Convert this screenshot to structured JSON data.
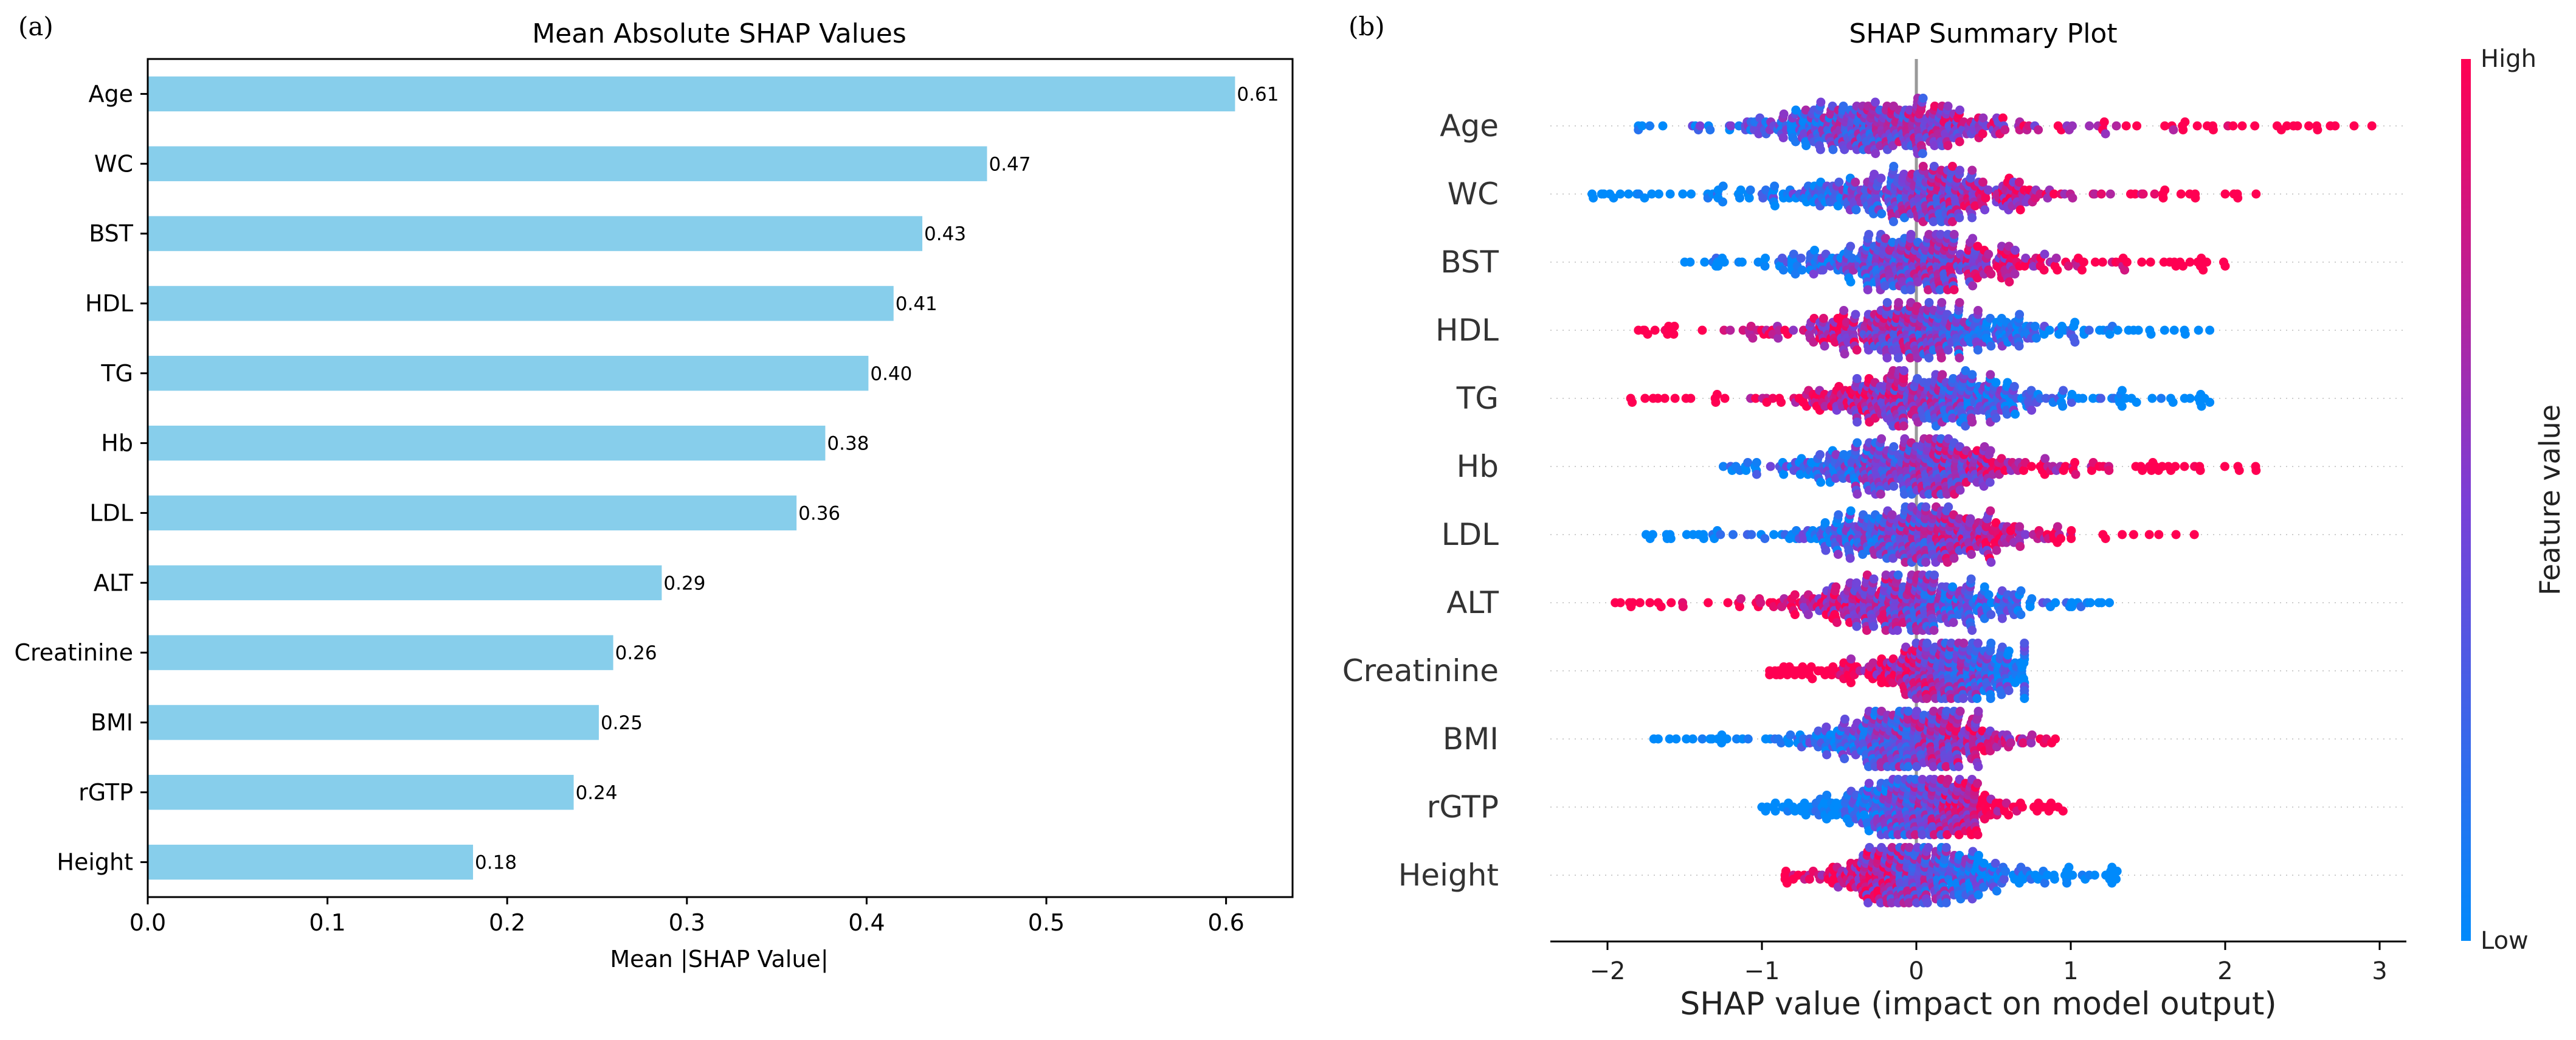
{
  "chart_data": [
    {
      "type": "bar",
      "orientation": "horizontal",
      "panel_label": "(a)",
      "title": "Mean Absolute SHAP Values",
      "xlabel": "Mean |SHAP Value|",
      "ylabel": "",
      "xlim": [
        0,
        0.637
      ],
      "xticks": [
        0.0,
        0.1,
        0.2,
        0.3,
        0.4,
        0.5,
        0.6
      ],
      "xtick_labels": [
        "0.0",
        "0.1",
        "0.2",
        "0.3",
        "0.4",
        "0.5",
        "0.6"
      ],
      "grid": false,
      "bar_color": "#87ceeb",
      "categories": [
        "Age",
        "WC",
        "BST",
        "HDL",
        "TG",
        "Hb",
        "LDL",
        "ALT",
        "Creatinine",
        "BMI",
        "rGTP",
        "Height"
      ],
      "values": [
        0.605,
        0.467,
        0.431,
        0.415,
        0.401,
        0.377,
        0.361,
        0.286,
        0.259,
        0.251,
        0.237,
        0.181
      ],
      "value_labels": [
        "0.61",
        "0.47",
        "0.43",
        "0.41",
        "0.40",
        "0.38",
        "0.36",
        "0.29",
        "0.26",
        "0.25",
        "0.24",
        "0.18"
      ]
    },
    {
      "type": "scatter",
      "subtype": "beeswarm",
      "panel_label": "(b)",
      "title": "SHAP Summary Plot",
      "xlabel": "SHAP value (impact on model output)",
      "xlim": [
        -2.4,
        3.15
      ],
      "xticks": [
        -2,
        -1,
        0,
        1,
        2,
        3
      ],
      "xtick_labels": [
        "−2",
        "−1",
        "0",
        "1",
        "2",
        "3"
      ],
      "zero_line": true,
      "features": [
        "Age",
        "WC",
        "BST",
        "HDL",
        "TG",
        "Hb",
        "LDL",
        "ALT",
        "Creatinine",
        "BMI",
        "rGTP",
        "Height"
      ],
      "feature_distributions": [
        {
          "name": "Age",
          "min": -1.8,
          "max": 2.95,
          "center": -0.25,
          "spread": 0.45,
          "low_side": "negative"
        },
        {
          "name": "WC",
          "min": -2.1,
          "max": 2.2,
          "center": 0.0,
          "spread": 0.45,
          "low_side": "negative"
        },
        {
          "name": "BST",
          "min": -1.5,
          "max": 2.0,
          "center": 0.0,
          "spread": 0.4,
          "low_side": "negative"
        },
        {
          "name": "HDL",
          "min": -1.8,
          "max": 1.9,
          "center": 0.0,
          "spread": 0.4,
          "low_side": "positive"
        },
        {
          "name": "TG",
          "min": -1.85,
          "max": 1.9,
          "center": 0.05,
          "spread": 0.4,
          "low_side": "positive"
        },
        {
          "name": "Hb",
          "min": -1.25,
          "max": 2.2,
          "center": 0.0,
          "spread": 0.35,
          "low_side": "negative"
        },
        {
          "name": "LDL",
          "min": -1.75,
          "max": 1.8,
          "center": 0.0,
          "spread": 0.38,
          "low_side": "negative"
        },
        {
          "name": "ALT",
          "min": -1.95,
          "max": 1.25,
          "center": -0.05,
          "spread": 0.35,
          "low_side": "positive"
        },
        {
          "name": "Creatinine",
          "min": -0.95,
          "max": 0.7,
          "center": 0.2,
          "spread": 0.25,
          "low_side": "positive"
        },
        {
          "name": "BMI",
          "min": -1.7,
          "max": 0.9,
          "center": 0.0,
          "spread": 0.3,
          "low_side": "negative"
        },
        {
          "name": "rGTP",
          "min": -1.0,
          "max": 0.95,
          "center": 0.0,
          "spread": 0.28,
          "low_side": "negative"
        },
        {
          "name": "Height",
          "min": -0.85,
          "max": 1.3,
          "center": 0.0,
          "spread": 0.3,
          "low_side": "positive"
        }
      ],
      "colorbar": {
        "label": "Feature value",
        "high_label": "High",
        "low_label": "Low",
        "low_color": "#008afb",
        "mid_color": "#7a3fd6",
        "high_color": "#ff0052"
      }
    }
  ]
}
